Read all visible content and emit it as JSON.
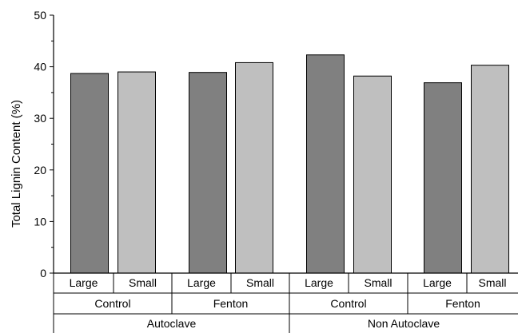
{
  "chart_data": {
    "type": "bar",
    "ylabel": "Total Lignin Content (%)",
    "ylim": [
      0,
      50
    ],
    "yticks": [
      0,
      10,
      20,
      30,
      40,
      50
    ],
    "grid": false,
    "bars": [
      {
        "size": "Large",
        "treatment": "Control",
        "group": "Autoclave",
        "value": 38.7
      },
      {
        "size": "Small",
        "treatment": "Control",
        "group": "Autoclave",
        "value": 39.0
      },
      {
        "size": "Large",
        "treatment": "Fenton",
        "group": "Autoclave",
        "value": 38.9
      },
      {
        "size": "Small",
        "treatment": "Fenton",
        "group": "Autoclave",
        "value": 40.8
      },
      {
        "size": "Large",
        "treatment": "Control",
        "group": "Non Autoclave",
        "value": 42.3
      },
      {
        "size": "Small",
        "treatment": "Control",
        "group": "Non Autoclave",
        "value": 38.2
      },
      {
        "size": "Large",
        "treatment": "Fenton",
        "group": "Non Autoclave",
        "value": 36.9
      },
      {
        "size": "Small",
        "treatment": "Fenton",
        "group": "Non Autoclave",
        "value": 40.3
      }
    ],
    "treatment_labels": [
      "Control",
      "Fenton",
      "Control",
      "Fenton"
    ],
    "group_labels": [
      "Autoclave",
      "Non Autoclave"
    ],
    "colors": {
      "Large": "#808080",
      "Small": "#bfbfbf"
    }
  }
}
